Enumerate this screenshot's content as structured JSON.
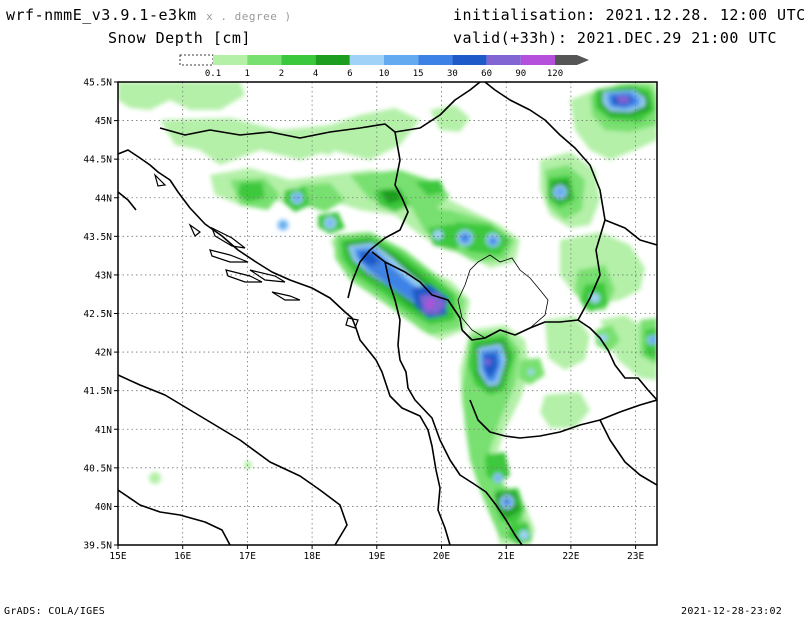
{
  "header": {
    "model": "wrf-nmmE_v3.9.1-e3km",
    "model_sub": "x . degree )",
    "field": "Snow Depth [cm]",
    "init_label": "initialisation:",
    "init_value": "2021.12.28.  12:00 UTC",
    "valid_label": "valid(+33h):",
    "valid_value": "2021.DEC.29  21:00 UTC"
  },
  "legend": {
    "levels": [
      "0.1",
      "1",
      "2",
      "4",
      "6",
      "10",
      "15",
      "30",
      "60",
      "90",
      "120"
    ],
    "colors": [
      "#b4f0a8",
      "#78e070",
      "#3cc83c",
      "#1e9e1e",
      "#a0d2f8",
      "#64aaf0",
      "#3c82e6",
      "#1e5ac8",
      "#8264d2",
      "#b450dc"
    ]
  },
  "map": {
    "lat_labels": [
      "45.5N",
      "45N",
      "44.5N",
      "44N",
      "43.5N",
      "43N",
      "42.5N",
      "42N",
      "41.5N",
      "41N",
      "40.5N",
      "40N",
      "39.5N"
    ],
    "lon_labels": [
      "15E",
      "16E",
      "17E",
      "18E",
      "19E",
      "20E",
      "21E",
      "22E",
      "23E"
    ]
  },
  "footer": {
    "left": "GrADS: COLA/IGES",
    "right": "2021-12-28-23:02"
  }
}
